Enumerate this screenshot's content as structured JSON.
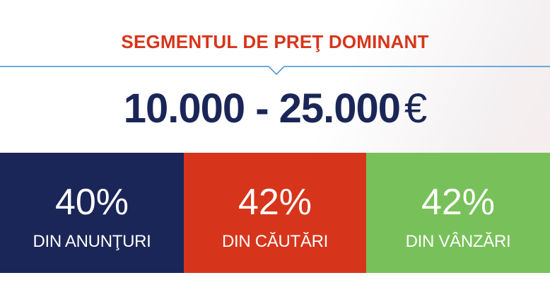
{
  "header": {
    "title": "SEGMENTUL DE PREŢ DOMINANT",
    "title_color": "#d7351b",
    "divider_color": "#3f8fd3"
  },
  "price_range": {
    "value": "10.000 - 25.000",
    "currency": "€",
    "color": "#1b2658"
  },
  "stats": [
    {
      "percent": "40%",
      "label": "DIN ANUNŢURI",
      "color": "#1b2658"
    },
    {
      "percent": "42%",
      "label": "DIN CĂUTĂRI",
      "color": "#d7351b"
    },
    {
      "percent": "42%",
      "label": "DIN VÂNZĂRI",
      "color": "#78c15a"
    }
  ]
}
